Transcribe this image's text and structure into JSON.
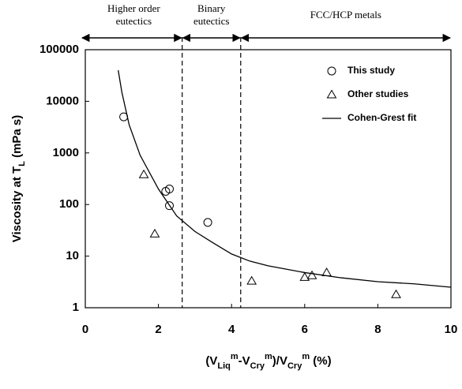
{
  "chart_data": {
    "type": "scatter",
    "yscale": "log",
    "xlim": [
      0,
      10
    ],
    "xticks": [
      0,
      2,
      4,
      6,
      8,
      10
    ],
    "ylim": [
      1,
      100000
    ],
    "yticks": [
      1,
      10,
      100,
      1000,
      10000,
      100000
    ],
    "ylabel": [
      {
        "text": "Viscosity at T"
      },
      {
        "text": "L",
        "shift": "sub"
      },
      {
        "text": " (mPa s)"
      }
    ],
    "xlabel": [
      {
        "text": "(V"
      },
      {
        "text": "Liq",
        "shift": "sub"
      },
      {
        "text": "m",
        "shift": "sup"
      },
      {
        "text": "-V"
      },
      {
        "text": "Cry",
        "shift": "sub"
      },
      {
        "text": "m",
        "shift": "sup"
      },
      {
        "text": ")/V"
      },
      {
        "text": "Cry",
        "shift": "sub"
      },
      {
        "text": "m",
        "shift": "sup"
      },
      {
        "text": " (%)"
      }
    ],
    "regions": [
      {
        "label": [
          "Higher order",
          "eutectics"
        ],
        "from": 0,
        "to": 2.65
      },
      {
        "label": [
          "Binary",
          "eutectics"
        ],
        "from": 2.65,
        "to": 4.25
      },
      {
        "label": [
          "FCC/HCP metals"
        ],
        "from": 4.25,
        "to": 10
      }
    ],
    "dividers": [
      2.65,
      4.25
    ],
    "legend": "upper right",
    "series": [
      {
        "name": "This study",
        "marker": "circle",
        "color": "#000000",
        "x": [
          1.05,
          2.2,
          2.3,
          2.3,
          3.35
        ],
        "values": [
          5000,
          180,
          200,
          95,
          45
        ]
      },
      {
        "name": "Other studies",
        "marker": "triangle",
        "color": "#000000",
        "x": [
          1.6,
          1.9,
          4.55,
          6.0,
          6.2,
          6.6,
          8.5
        ],
        "values": [
          380,
          27,
          3.3,
          3.9,
          4.2,
          4.8,
          1.8
        ]
      },
      {
        "name": "Cohen-Grest fit",
        "marker": "line",
        "color": "#000000",
        "x": [
          0.9,
          1.0,
          1.2,
          1.5,
          2.0,
          2.5,
          3.0,
          3.5,
          4.0,
          4.5,
          5.0,
          6.0,
          7.0,
          8.0,
          9.0,
          10.0
        ],
        "values": [
          40000,
          15000,
          3500,
          900,
          200,
          60,
          30,
          18,
          11,
          8,
          6.5,
          4.8,
          3.8,
          3.2,
          2.9,
          2.5
        ]
      }
    ]
  }
}
